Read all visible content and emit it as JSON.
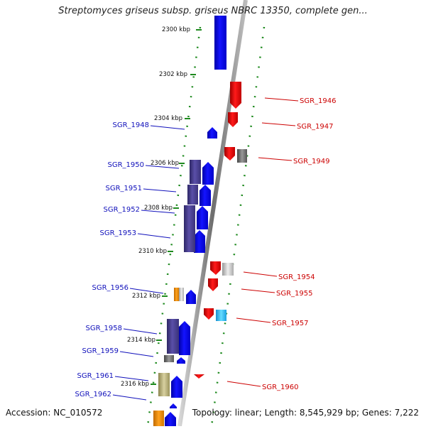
{
  "title": "Streptomyces griseus subsp. griseus NBRC 13350, complete gen...",
  "footer": {
    "accession_label": "Accession:",
    "accession": "NC_010572",
    "topology_label": "Topology:",
    "topology": "linear;",
    "length_label": "Length:",
    "length": "8,545,929 bp;",
    "genes_label": "Genes:",
    "genes": "7,222"
  },
  "colors": {
    "forward_gene": "#0a0aff",
    "reverse_gene": "#ee0000",
    "operon": "#4a3f8f",
    "ruler": "#1e8a1e",
    "left_labels": "#1010bb",
    "right_labels": "#cc0000",
    "axis": "#888888"
  },
  "ruler": {
    "unit": "kbp",
    "ticks": [
      "2300 kbp",
      "2302 kbp",
      "2304 kbp",
      "2306 kbp",
      "2308 kbp",
      "2310 kbp",
      "2312 kbp",
      "2314 kbp",
      "2316 kbp"
    ]
  },
  "left_genes": [
    "SGR_1948",
    "SGR_1950",
    "SGR_1951",
    "SGR_1952",
    "SGR_1953",
    "SGR_1956",
    "SGR_1958",
    "SGR_1959",
    "SGR_1961",
    "SGR_1962"
  ],
  "right_genes": [
    "SGR_1946",
    "SGR_1947",
    "SGR_1949",
    "SGR_1954",
    "SGR_1955",
    "SGR_1957",
    "SGR_1960"
  ]
}
